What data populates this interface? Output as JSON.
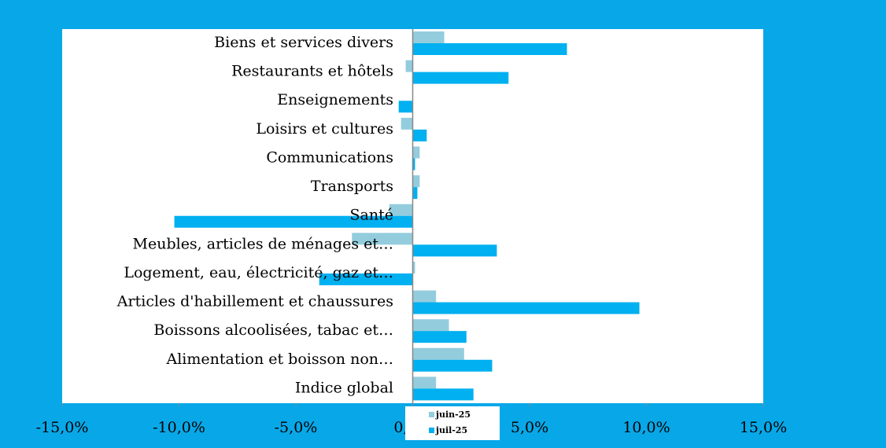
{
  "chart_data": {
    "type": "hbar",
    "categories": [
      "Biens et services divers",
      "Restaurants et hôtels",
      "Enseignements",
      "Loisirs et cultures",
      "Communications",
      "Transports",
      "Santé",
      "Meubles, articles de ménages et…",
      "Logement, eau, électricité, gaz et…",
      "Articles d'habillement et chaussures",
      "Boissons alcoolisées, tabac et…",
      "Alimentation et boisson non…",
      "Indice global"
    ],
    "series": [
      {
        "name": "juin-25",
        "color": "#93cddd",
        "values": [
          1.35,
          -0.3,
          0,
          -0.5,
          0.3,
          0.3,
          -1.0,
          -2.6,
          0.1,
          1.0,
          1.55,
          2.2,
          1.0
        ]
      },
      {
        "name": "juil-25",
        "color": "#00b0f0",
        "values": [
          6.6,
          4.1,
          -0.6,
          0.6,
          0.1,
          0.2,
          -10.2,
          3.6,
          -4.0,
          9.7,
          2.3,
          3.4,
          2.6
        ]
      }
    ],
    "xlim": [
      -15,
      15
    ],
    "xticks": [
      {
        "value": -15,
        "label": "-15,0%"
      },
      {
        "value": -10,
        "label": "-10,0%"
      },
      {
        "value": -5,
        "label": "-5,0%"
      },
      {
        "value": 0,
        "label": "0,0%"
      },
      {
        "value": 5,
        "label": "5,0%"
      },
      {
        "value": 10,
        "label": "10,0%"
      },
      {
        "value": 15,
        "label": "15,0%"
      }
    ],
    "legend": "bottom"
  }
}
